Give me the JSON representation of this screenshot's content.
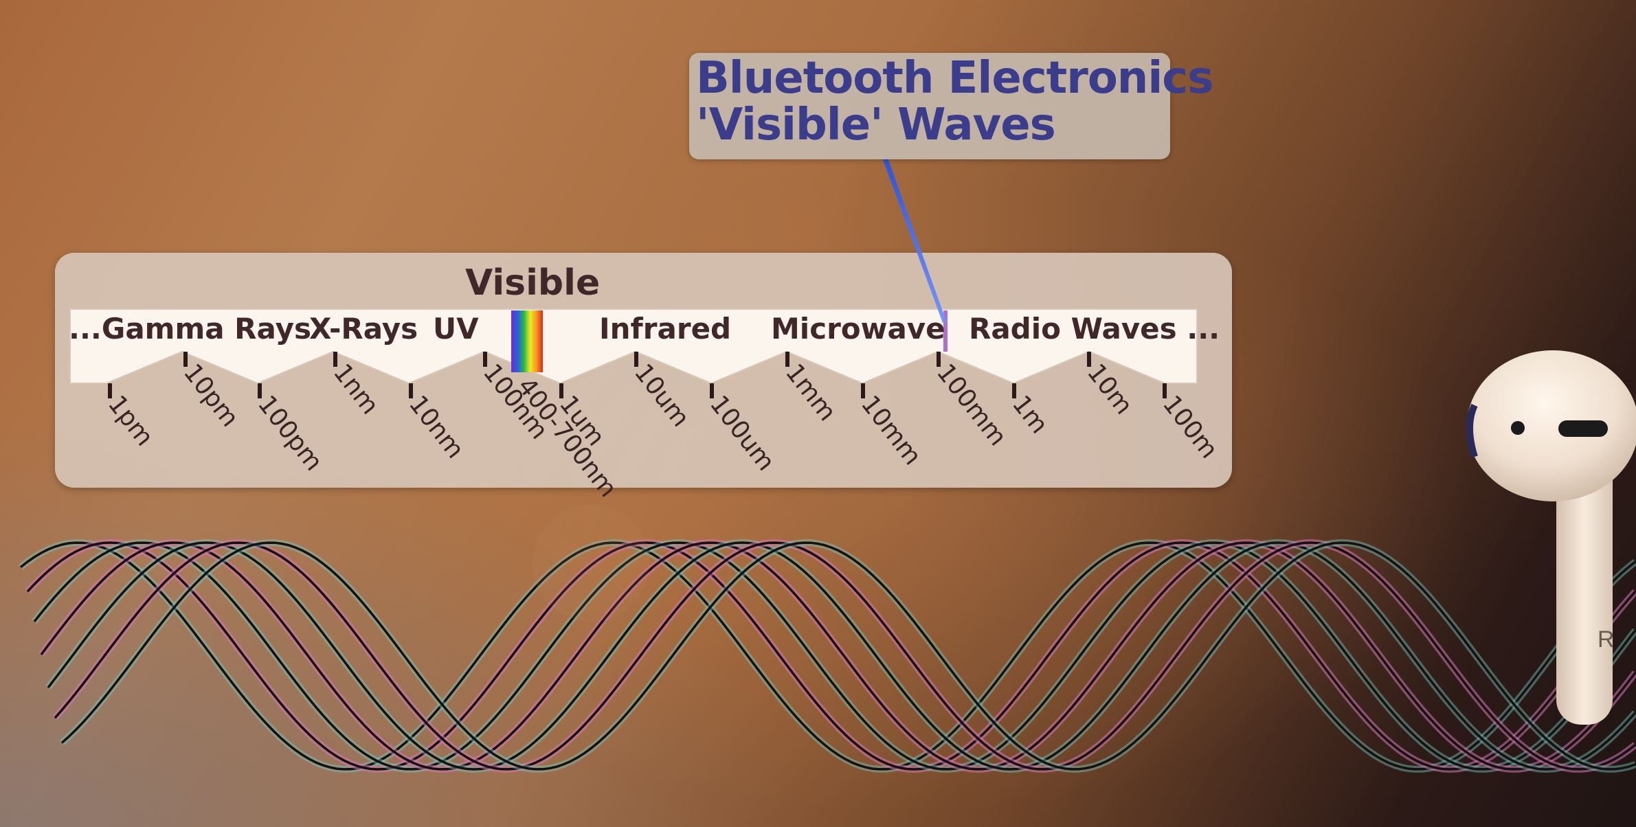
{
  "callout": {
    "line1": "Bluetooth Electronics",
    "line2": "'Visible' Waves"
  },
  "spectrum": {
    "header": "Visible",
    "bands": [
      "...Gamma Rays",
      "X-Rays",
      "UV",
      "Infrared",
      "Microwave",
      "Radio Waves ..."
    ],
    "ticks": [
      "1pm",
      "10pm",
      "100pm",
      "1nm",
      "10nm",
      "100nm",
      "400-700nm",
      "1um",
      "10um",
      "100um",
      "1mm",
      "10mm",
      "100mm",
      "1m",
      "10m",
      "100m"
    ]
  },
  "earbud": {
    "side_label": "R"
  },
  "colors": {
    "callout_text": "#3b3c8c",
    "label_text": "#40282a",
    "pointer": "#3d6bff"
  }
}
